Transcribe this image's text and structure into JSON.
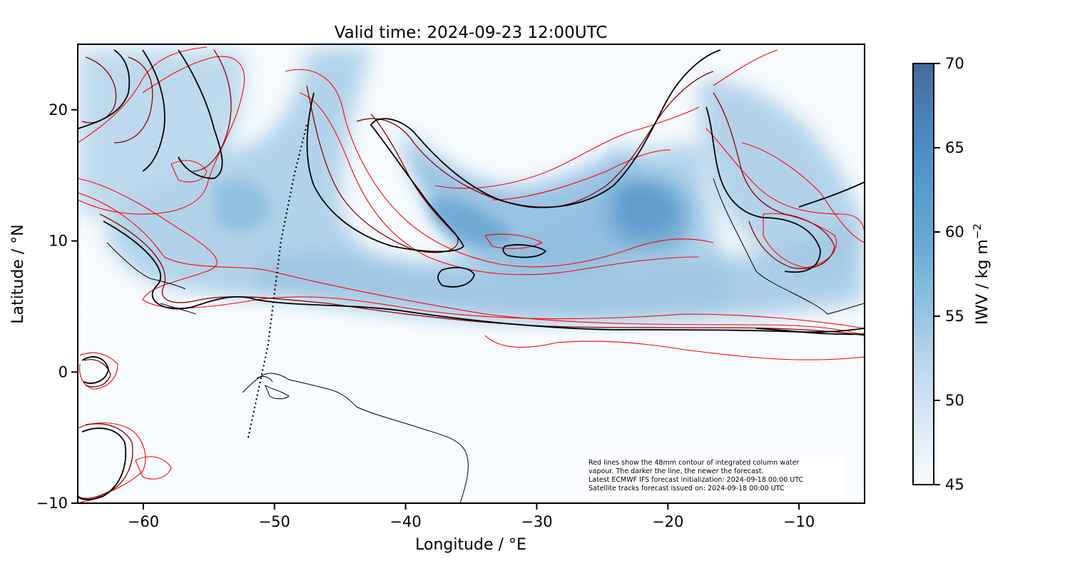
{
  "chart_data": {
    "type": "map",
    "title": "Valid time: 2024-09-23 12:00UTC",
    "xlabel": "Longitude / °E",
    "ylabel": "Latitude / °N",
    "xlim": [
      -65,
      -5
    ],
    "ylim": [
      -10,
      25
    ],
    "x_ticks": [
      -60,
      -50,
      -40,
      -30,
      -20,
      -10
    ],
    "x_tick_labels": [
      "−60",
      "−50",
      "−40",
      "−30",
      "−20",
      "−10"
    ],
    "y_ticks": [
      -10,
      0,
      10,
      20
    ],
    "y_tick_labels": [
      "−10",
      "0",
      "10",
      "20"
    ],
    "grid": false,
    "field": "IWV",
    "colorbar": {
      "label": "IWV / kg m",
      "label_exponent": "−2",
      "min": 45,
      "max": 70,
      "ticks": [
        45,
        50,
        55,
        60,
        65,
        70
      ],
      "tick_labels": [
        "45",
        "50",
        "55",
        "60",
        "65",
        "70"
      ],
      "colors": [
        "#f7fbff",
        "#c6dbef",
        "#6baed6",
        "#4a8ec5",
        "#46699b"
      ]
    },
    "contour_colors": {
      "older_forecast": "#ff0000",
      "mid_forecast": "#8b0000",
      "newest_forecast": "#000000"
    },
    "satellite_track": [
      [
        -52,
        -5
      ],
      [
        -50.5,
        2
      ],
      [
        -49.5,
        10
      ],
      [
        -48.5,
        15
      ],
      [
        -47.5,
        19
      ]
    ],
    "annotation": [
      "Red lines show the 48mm contour of integrated column water",
      "vapour. The darker the line, the newer the forecast.",
      "Latest ECMWF IFS forecast initialization: 2024-09-18 00:00 UTC",
      "Satellite tracks forecast issued on: 2024-09-18 00:00 UTC"
    ]
  }
}
